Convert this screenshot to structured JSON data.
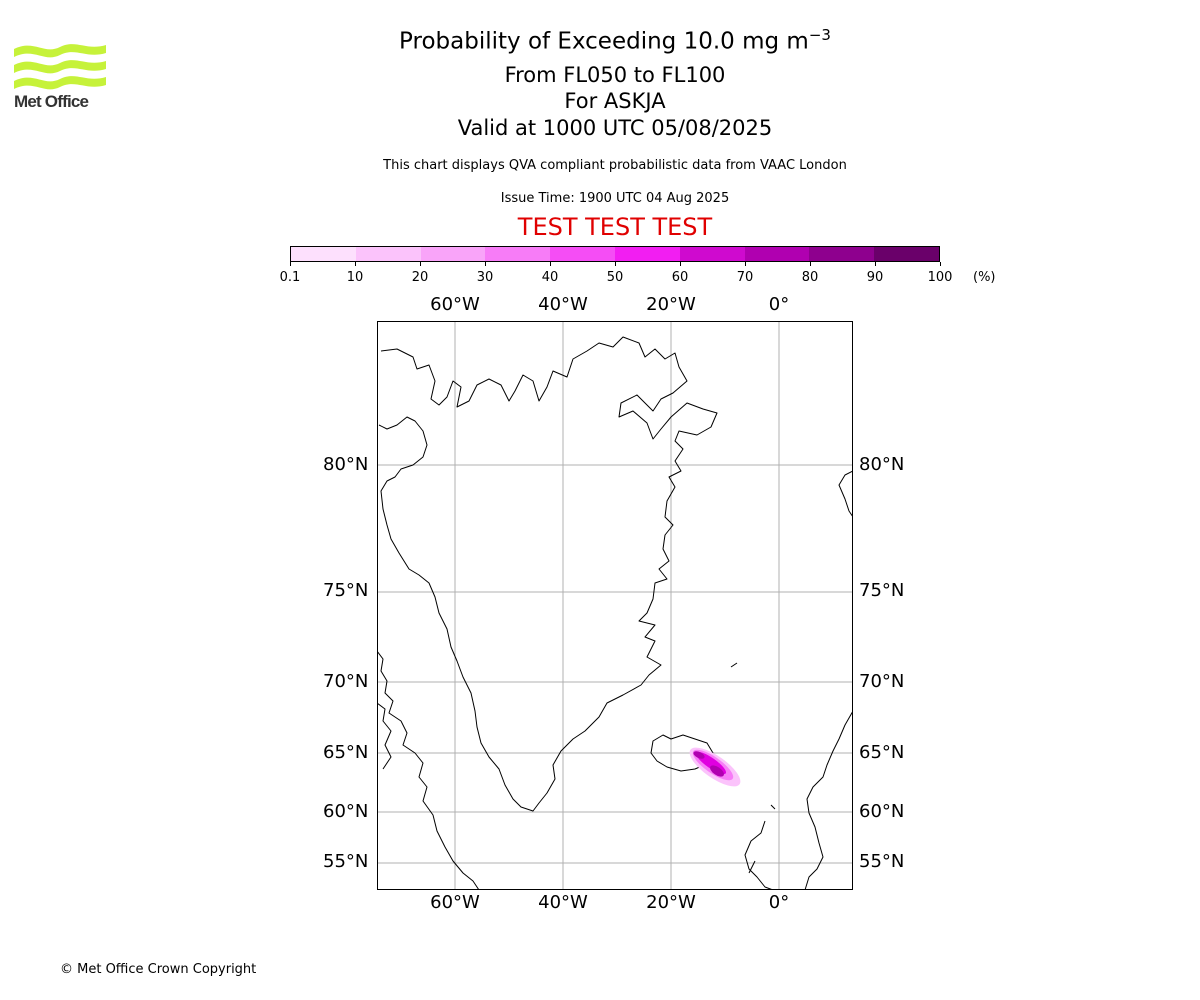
{
  "header": {
    "title_main": "Probability of Exceeding 10.0 mg m",
    "title_sup": "−3",
    "level_range": "From FL050 to FL100",
    "volcano": "For ASKJA",
    "valid_time": "Valid at 1000 UTC 05/08/2025",
    "description": "This chart displays QVA compliant probabilistic data from VAAC London",
    "issue_time": "Issue Time: 1900 UTC 04 Aug 2025",
    "test_banner": "TEST TEST TEST"
  },
  "logo": {
    "text": "Met Office",
    "color": "#c6f23a"
  },
  "colorbar": {
    "labels": [
      "0.1",
      "10",
      "20",
      "30",
      "40",
      "50",
      "60",
      "70",
      "80",
      "90",
      "100"
    ],
    "unit": "(%)",
    "colors": [
      "#fde0fd",
      "#fbc3fb",
      "#f9a4f9",
      "#f77cf7",
      "#f54df5",
      "#f21ef2",
      "#cf0acf",
      "#b000b0",
      "#8e008e",
      "#6a006a"
    ]
  },
  "map": {
    "lon_labels": [
      "60°W",
      "40°W",
      "20°W",
      "0°"
    ],
    "lat_labels": [
      "80°N",
      "75°N",
      "70°N",
      "65°N",
      "60°N",
      "55°N"
    ],
    "gridline_color": "#b0b0b0",
    "plume_color": "#e000e0"
  },
  "footer": {
    "copyright": "© Met Office Crown Copyright"
  }
}
